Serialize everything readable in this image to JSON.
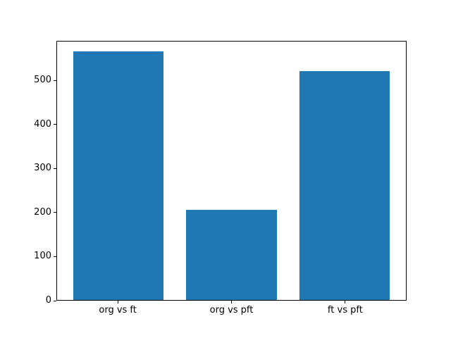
{
  "chart_data": {
    "type": "bar",
    "categories": [
      "org vs ft",
      "org vs pft",
      "ft vs pft"
    ],
    "values": [
      567,
      206,
      523
    ],
    "title": "",
    "xlabel": "",
    "ylabel": "",
    "ylim": [
      0,
      590
    ],
    "yticks": [
      0,
      100,
      200,
      300,
      400,
      500
    ],
    "xlim": [
      -0.54,
      2.54
    ],
    "x": [
      0,
      1,
      2
    ],
    "bar_width": 0.8,
    "bar_color": "#1f77b4",
    "axis_color": "#000000",
    "tick_label_color": "#000000",
    "background_color": "#ffffff",
    "grid": false,
    "legend": null
  }
}
